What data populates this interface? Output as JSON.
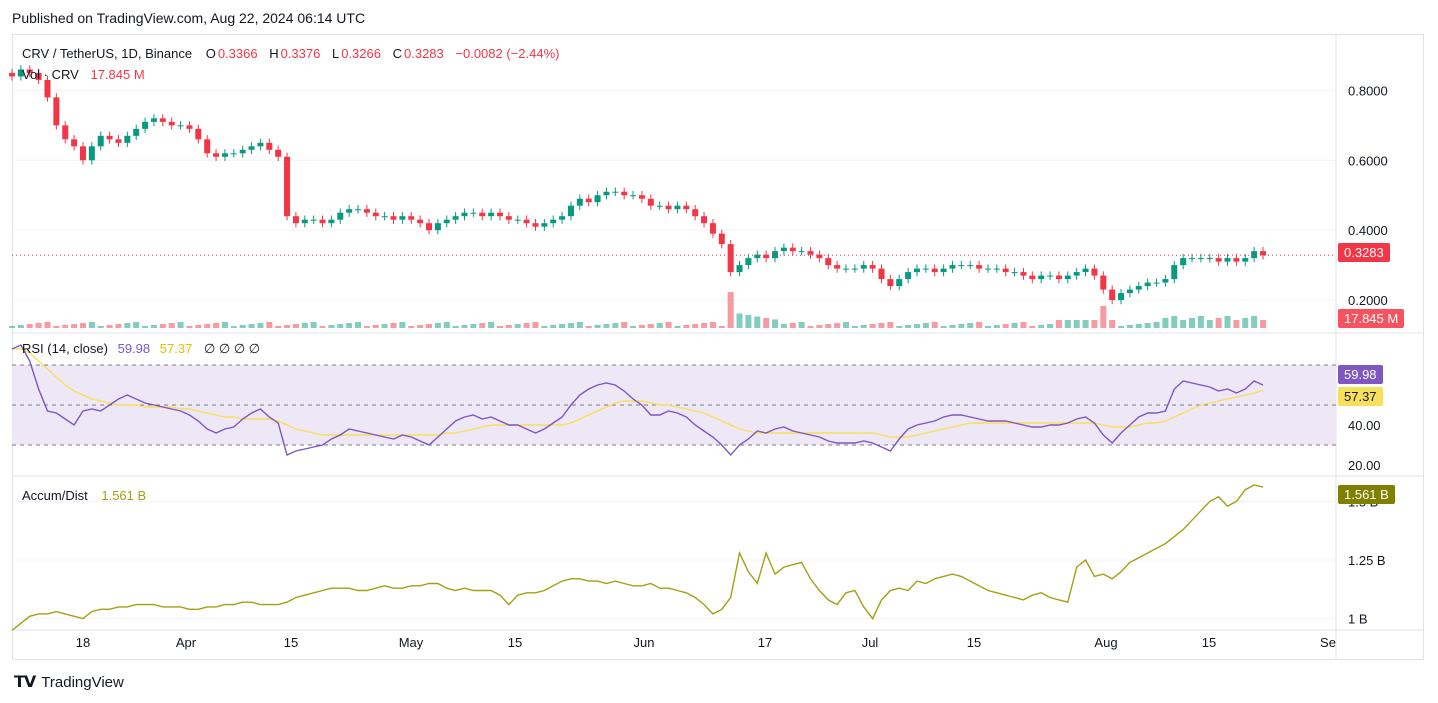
{
  "header": {
    "published": "Published on TradingView.com, Aug 22, 2024 06:14 UTC"
  },
  "legend": {
    "symbol": "CRV / TetherUS, 1D, Binance",
    "o_label": "O",
    "o_value": "0.3366",
    "h_label": "H",
    "h_value": "0.3376",
    "l_label": "L",
    "l_value": "0.3266",
    "c_label": "C",
    "c_value": "0.3283",
    "change": "−0.0082 (−2.44%)",
    "vol_label": "Vol · CRV",
    "vol_value": "17.845 M",
    "rsi_label": "RSI (14, close)",
    "rsi_value": "59.98",
    "rsi_ma_value": "57.37",
    "rsi_extra": "∅ ∅ ∅ ∅",
    "ad_label": "Accum/Dist",
    "ad_value": "1.561 B"
  },
  "badges": {
    "price": "0.3283",
    "volume": "17.845 M",
    "rsi": "59.98",
    "rsi_ma": "57.37",
    "ad": "1.561 B"
  },
  "brand": {
    "name": "TradingView"
  },
  "colors": {
    "up": "#089981",
    "down": "#f23645",
    "rsi": "#7e57c2",
    "rsi_ma": "#f7e05a",
    "ad": "#a3a013",
    "badge_ad": "#808000",
    "rsi_band": "#ede7f6"
  },
  "chart_data": [
    {
      "type": "candlestick",
      "title": "CRV / TetherUS, 1D, Binance",
      "x_ticks": [
        "18",
        "Apr",
        "15",
        "May",
        "15",
        "Jun",
        "17",
        "Jul",
        "15",
        "Aug",
        "15",
        "Se"
      ],
      "y_ticks": [
        "0.8000",
        "0.6000",
        "0.4000",
        "0.2000"
      ],
      "ylim": [
        0.12,
        0.95
      ],
      "last_close": 0.3283,
      "closes": [
        0.84,
        0.86,
        0.85,
        0.83,
        0.78,
        0.7,
        0.66,
        0.64,
        0.6,
        0.64,
        0.67,
        0.66,
        0.65,
        0.67,
        0.69,
        0.71,
        0.72,
        0.71,
        0.7,
        0.7,
        0.69,
        0.66,
        0.62,
        0.61,
        0.62,
        0.62,
        0.63,
        0.64,
        0.65,
        0.63,
        0.61,
        0.44,
        0.42,
        0.43,
        0.43,
        0.42,
        0.43,
        0.45,
        0.46,
        0.46,
        0.45,
        0.44,
        0.44,
        0.43,
        0.44,
        0.43,
        0.42,
        0.4,
        0.42,
        0.43,
        0.44,
        0.45,
        0.45,
        0.44,
        0.45,
        0.44,
        0.43,
        0.43,
        0.42,
        0.41,
        0.42,
        0.43,
        0.44,
        0.47,
        0.49,
        0.48,
        0.5,
        0.51,
        0.51,
        0.5,
        0.5,
        0.49,
        0.47,
        0.47,
        0.46,
        0.47,
        0.46,
        0.44,
        0.42,
        0.39,
        0.36,
        0.28,
        0.3,
        0.32,
        0.33,
        0.32,
        0.34,
        0.35,
        0.34,
        0.34,
        0.33,
        0.32,
        0.3,
        0.29,
        0.29,
        0.29,
        0.3,
        0.29,
        0.26,
        0.24,
        0.26,
        0.28,
        0.29,
        0.29,
        0.28,
        0.29,
        0.3,
        0.3,
        0.3,
        0.29,
        0.29,
        0.29,
        0.28,
        0.28,
        0.27,
        0.26,
        0.27,
        0.27,
        0.26,
        0.27,
        0.28,
        0.29,
        0.27,
        0.23,
        0.2,
        0.22,
        0.23,
        0.24,
        0.25,
        0.25,
        0.26,
        0.3,
        0.32,
        0.32,
        0.32,
        0.32,
        0.31,
        0.32,
        0.31,
        0.32,
        0.34,
        0.3283
      ]
    },
    {
      "type": "bar",
      "title": "Vol · CRV",
      "last_value": "17.845 M"
    },
    {
      "type": "line",
      "title": "RSI (14, close)",
      "y_ticks": [
        "40.00",
        "20.00"
      ],
      "ylim": [
        15,
        85
      ],
      "bands": [
        70,
        50,
        30
      ],
      "series": [
        {
          "name": "RSI",
          "values": [
            78,
            80,
            72,
            58,
            47,
            46,
            43,
            40,
            47,
            48,
            47,
            50,
            53,
            55,
            53,
            51,
            50,
            49,
            48,
            47,
            45,
            42,
            38,
            36,
            38,
            39,
            43,
            46,
            48,
            44,
            41,
            25,
            27,
            28,
            29,
            30,
            33,
            35,
            38,
            37,
            36,
            35,
            34,
            33,
            35,
            34,
            32,
            30,
            34,
            38,
            42,
            44,
            45,
            43,
            44,
            42,
            40,
            40,
            38,
            36,
            38,
            41,
            44,
            50,
            55,
            58,
            60,
            61,
            60,
            57,
            53,
            50,
            45,
            45,
            47,
            46,
            44,
            40,
            37,
            34,
            30,
            25,
            30,
            33,
            37,
            36,
            38,
            39,
            37,
            36,
            35,
            34,
            32,
            31,
            31,
            31,
            32,
            31,
            29,
            27,
            33,
            38,
            40,
            41,
            42,
            44,
            45,
            45,
            44,
            43,
            42,
            42,
            42,
            41,
            40,
            39,
            39,
            40,
            40,
            41,
            43,
            44,
            41,
            35,
            31,
            36,
            40,
            44,
            46,
            46,
            47,
            58,
            62,
            61,
            60,
            59,
            57,
            58,
            56,
            58,
            62,
            59.98
          ]
        },
        {
          "name": "MA",
          "values": [
            78,
            78,
            76,
            72,
            68,
            64,
            60,
            57,
            55,
            53,
            52,
            51,
            50,
            50,
            50,
            49,
            49,
            49,
            49,
            48,
            48,
            47,
            46,
            45,
            44,
            44,
            43,
            43,
            43,
            43,
            42,
            40,
            38,
            37,
            36,
            35,
            35,
            35,
            35,
            35,
            35,
            35,
            35,
            35,
            35,
            35,
            35,
            35,
            35,
            36,
            36,
            37,
            38,
            39,
            40,
            40,
            40,
            40,
            40,
            40,
            40,
            40,
            40,
            41,
            43,
            45,
            47,
            49,
            51,
            52,
            52,
            52,
            51,
            50,
            50,
            49,
            48,
            47,
            46,
            44,
            42,
            40,
            38,
            37,
            36,
            36,
            36,
            36,
            36,
            36,
            36,
            36,
            36,
            36,
            36,
            36,
            36,
            36,
            35,
            34,
            34,
            34,
            35,
            36,
            37,
            38,
            39,
            40,
            41,
            41,
            41,
            41,
            41,
            41,
            41,
            41,
            41,
            41,
            41,
            41,
            41,
            41,
            41,
            40,
            39,
            39,
            39,
            40,
            41,
            41,
            42,
            44,
            46,
            48,
            50,
            51,
            52,
            53,
            54,
            55,
            56,
            57.37
          ]
        }
      ],
      "last_value": "59.98",
      "last_ma": "57.37"
    },
    {
      "type": "line",
      "title": "Accum/Dist",
      "y_ticks": [
        "1.5 B",
        "1.25 B",
        "1 B"
      ],
      "ylim": [
        0.96,
        1.6
      ],
      "series": [
        {
          "name": "Accum/Dist",
          "values": [
            0.95,
            0.98,
            1.01,
            1.02,
            1.02,
            1.03,
            1.02,
            1.01,
            1.0,
            1.03,
            1.04,
            1.04,
            1.05,
            1.05,
            1.06,
            1.06,
            1.06,
            1.05,
            1.05,
            1.05,
            1.04,
            1.04,
            1.05,
            1.05,
            1.06,
            1.06,
            1.07,
            1.07,
            1.06,
            1.06,
            1.06,
            1.07,
            1.09,
            1.1,
            1.11,
            1.12,
            1.13,
            1.13,
            1.13,
            1.12,
            1.12,
            1.13,
            1.14,
            1.13,
            1.13,
            1.14,
            1.14,
            1.15,
            1.15,
            1.13,
            1.12,
            1.13,
            1.12,
            1.12,
            1.12,
            1.1,
            1.06,
            1.1,
            1.11,
            1.11,
            1.12,
            1.14,
            1.16,
            1.17,
            1.17,
            1.16,
            1.16,
            1.15,
            1.16,
            1.15,
            1.14,
            1.14,
            1.15,
            1.13,
            1.13,
            1.12,
            1.11,
            1.09,
            1.06,
            1.02,
            1.04,
            1.09,
            1.28,
            1.2,
            1.15,
            1.28,
            1.19,
            1.22,
            1.23,
            1.24,
            1.17,
            1.12,
            1.08,
            1.06,
            1.11,
            1.12,
            1.05,
            1.0,
            1.08,
            1.12,
            1.13,
            1.12,
            1.16,
            1.15,
            1.17,
            1.18,
            1.19,
            1.18,
            1.16,
            1.14,
            1.12,
            1.11,
            1.1,
            1.09,
            1.08,
            1.1,
            1.11,
            1.09,
            1.08,
            1.07,
            1.22,
            1.25,
            1.18,
            1.19,
            1.17,
            1.2,
            1.24,
            1.26,
            1.28,
            1.3,
            1.32,
            1.35,
            1.38,
            1.42,
            1.46,
            1.5,
            1.52,
            1.48,
            1.5,
            1.55,
            1.57,
            1.561
          ]
        }
      ],
      "last_value": "1.561 B"
    }
  ]
}
